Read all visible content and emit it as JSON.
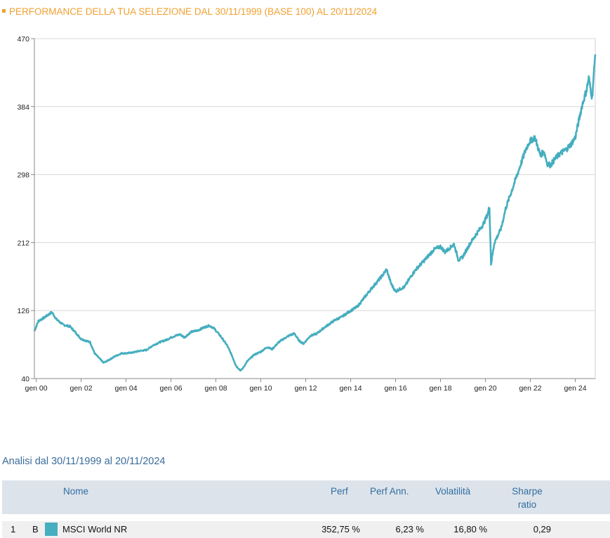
{
  "header": {
    "title": "PERFORMANCE DELLA TUA SELEZIONE DAL 30/11/1999 (BASE 100) AL 20/11/2024"
  },
  "chart_data": {
    "type": "line",
    "title": "PERFORMANCE DELLA TUA SELEZIONE DAL 30/11/1999 (BASE 100) AL 20/11/2024",
    "xlabel": "",
    "ylabel": "",
    "ylim": [
      40,
      470
    ],
    "xlim": [
      1999.92,
      2024.89
    ],
    "yticks": [
      "40",
      "126",
      "212",
      "298",
      "384",
      "470"
    ],
    "yticks_values": [
      40,
      126,
      212,
      298,
      384,
      470
    ],
    "xticks": [
      "gen 00",
      "gen 02",
      "gen 04",
      "gen 06",
      "gen 08",
      "gen 10",
      "gen 12",
      "gen 14",
      "gen 16",
      "gen 18",
      "gen 20",
      "gen 22",
      "gen 24"
    ],
    "xticks_values": [
      2000,
      2002,
      2004,
      2006,
      2008,
      2010,
      2012,
      2014,
      2016,
      2018,
      2020,
      2022,
      2024
    ],
    "grid": true,
    "color": "#45aebf",
    "series": [
      {
        "name": "MSCI World NR",
        "x": [
          1999.92,
          2000.1,
          2000.3,
          2000.5,
          2000.7,
          2000.9,
          2001.2,
          2001.5,
          2001.7,
          2002.0,
          2002.4,
          2002.6,
          2002.8,
          2003.0,
          2003.2,
          2003.5,
          2003.8,
          2004.0,
          2004.3,
          2004.6,
          2004.9,
          2005.2,
          2005.5,
          2005.8,
          2006.0,
          2006.4,
          2006.6,
          2006.9,
          2007.2,
          2007.5,
          2007.7,
          2007.9,
          2008.2,
          2008.5,
          2008.7,
          2008.9,
          2009.1,
          2009.2,
          2009.4,
          2009.7,
          2010.0,
          2010.3,
          2010.5,
          2010.8,
          2011.0,
          2011.3,
          2011.5,
          2011.7,
          2011.9,
          2012.2,
          2012.5,
          2012.8,
          2013.0,
          2013.3,
          2013.6,
          2013.9,
          2014.3,
          2014.6,
          2014.9,
          2015.2,
          2015.4,
          2015.6,
          2015.8,
          2016.0,
          2016.1,
          2016.4,
          2016.7,
          2016.9,
          2017.3,
          2017.7,
          2018.0,
          2018.2,
          2018.6,
          2018.8,
          2018.97,
          2019.3,
          2019.6,
          2019.9,
          2020.1,
          2020.18,
          2020.25,
          2020.4,
          2020.7,
          2020.9,
          2021.2,
          2021.5,
          2021.8,
          2021.97,
          2022.2,
          2022.45,
          2022.6,
          2022.75,
          2022.9,
          2023.1,
          2023.3,
          2023.6,
          2023.8,
          2024.0,
          2024.3,
          2024.5,
          2024.6,
          2024.75,
          2024.89
        ],
        "values": [
          100,
          113,
          116,
          120,
          124,
          115,
          108,
          106,
          100,
          90,
          86,
          72,
          66,
          60,
          63,
          68,
          72,
          72,
          73,
          75,
          76,
          82,
          86,
          89,
          92,
          96,
          92,
          99,
          101,
          105,
          107,
          104,
          94,
          82,
          70,
          56,
          50,
          53,
          62,
          70,
          74,
          80,
          77,
          86,
          90,
          95,
          97,
          88,
          84,
          94,
          97,
          104,
          108,
          114,
          118,
          124,
          131,
          142,
          153,
          163,
          170,
          178,
          160,
          150,
          152,
          156,
          170,
          178,
          190,
          203,
          207,
          200,
          210,
          190,
          193,
          210,
          223,
          235,
          248,
          258,
          185,
          212,
          230,
          255,
          280,
          305,
          330,
          340,
          345,
          322,
          328,
          312,
          310,
          318,
          324,
          330,
          336,
          345,
          385,
          405,
          420,
          395,
          450
        ]
      }
    ]
  },
  "analysis": {
    "title": "Analisi dal 30/11/1999 al 20/11/2024",
    "columns": {
      "name": "Nome",
      "perf": "Perf",
      "perf_ann": "Perf Ann.",
      "volatility": "Volatilità",
      "sharpe_line1": "Sharpe",
      "sharpe_line2": "ratio"
    },
    "rows": [
      {
        "index": "1",
        "code": "B",
        "color": "#45aebf",
        "name": "MSCI World NR",
        "perf": "352,75 %",
        "perf_ann": "6,23 %",
        "volatility": "16,80 %",
        "sharpe": "0,29"
      }
    ]
  }
}
